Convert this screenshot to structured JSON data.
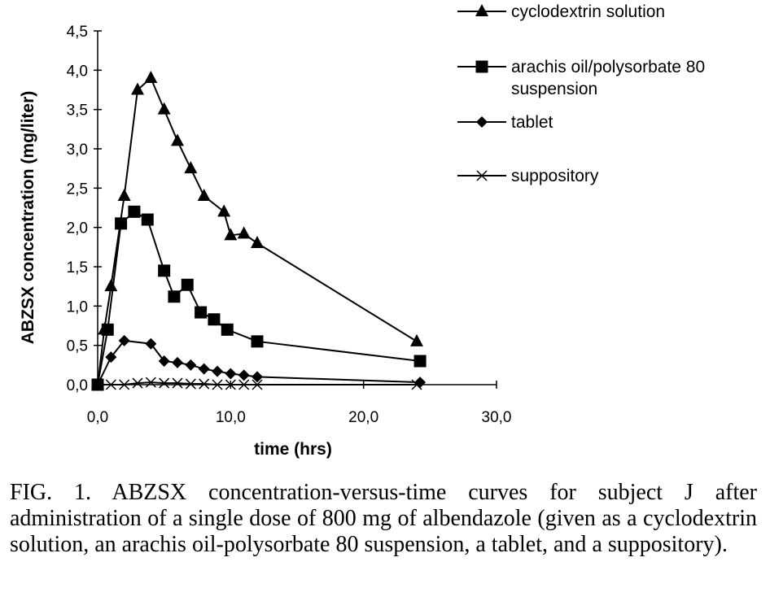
{
  "chart_data": {
    "type": "line",
    "xlabel": "time (hrs)",
    "ylabel": "ABZSX concentration (mg/liter)",
    "xlim": [
      0,
      30
    ],
    "ylim": [
      0,
      4.5
    ],
    "x_ticks": [
      "0,0",
      "10,0",
      "20,0",
      "30,0"
    ],
    "y_ticks": [
      "0,0",
      "0,5",
      "1,0",
      "1,5",
      "2,0",
      "2,5",
      "3,0",
      "3,5",
      "4,0",
      "4,5"
    ],
    "grid": false,
    "legend_position": "top-right",
    "series": [
      {
        "name": "cyclodextrin solution",
        "marker": "triangle",
        "x": [
          0,
          0.5,
          1,
          2,
          3,
          4,
          5,
          6,
          7,
          8,
          9.5,
          10,
          11,
          12,
          24
        ],
        "y": [
          0,
          0.7,
          1.25,
          2.4,
          3.75,
          3.9,
          3.5,
          3.1,
          2.75,
          2.4,
          2.2,
          1.9,
          1.92,
          1.8,
          0.55
        ]
      },
      {
        "name": "arachis oil/polysorbate 80 suspension",
        "marker": "square",
        "x": [
          0,
          0.75,
          1.75,
          2.75,
          3.75,
          5,
          5.75,
          6.75,
          7.75,
          8.75,
          9.75,
          12,
          24.25
        ],
        "y": [
          0,
          0.7,
          2.05,
          2.2,
          2.1,
          1.45,
          1.12,
          1.27,
          0.92,
          0.83,
          0.7,
          0.55,
          0.3
        ]
      },
      {
        "name": "tablet",
        "marker": "diamond",
        "x": [
          0,
          1,
          2,
          4,
          5,
          6,
          7,
          8,
          9,
          10,
          11,
          12,
          24.25
        ],
        "y": [
          0,
          0.35,
          0.56,
          0.52,
          0.3,
          0.28,
          0.25,
          0.2,
          0.17,
          0.14,
          0.12,
          0.1,
          0.03
        ]
      },
      {
        "name": "suppository",
        "marker": "x",
        "x": [
          0,
          1,
          2,
          3,
          4,
          5,
          6,
          7,
          8,
          9,
          10,
          11,
          12,
          24
        ],
        "y": [
          0,
          0,
          0,
          0.02,
          0.03,
          0.02,
          0.02,
          0.01,
          0.01,
          0,
          0,
          0,
          0,
          0
        ]
      }
    ]
  },
  "caption": "FIG. 1. ABZSX concentration-versus-time curves for subject J after administration of a single dose of 800 mg of albendazole (given as a cyclodextrin solution, an arachis oil-polysorbate 80 suspension, a tablet, and a suppository)."
}
